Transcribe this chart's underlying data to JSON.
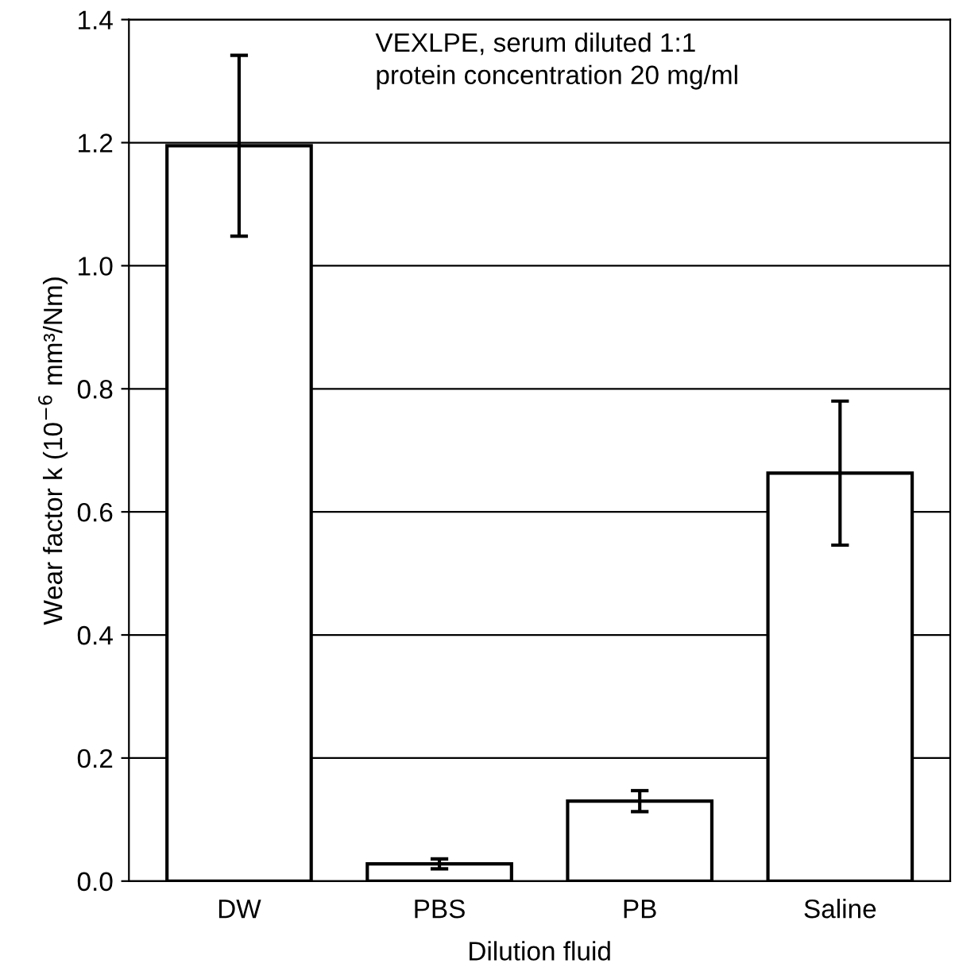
{
  "chart_data": {
    "type": "bar",
    "xlabel": "Dilution fluid",
    "ylabel": "Wear factor k (10$^{−6}$ mm³/Nm)",
    "categories": [
      "DW",
      "PBS",
      "PB",
      "Saline"
    ],
    "values": [
      1.195,
      0.028,
      0.13,
      0.663
    ],
    "errors": [
      0.147,
      0.008,
      0.017,
      0.117
    ],
    "color": "#ffffff",
    "ylim": [
      0,
      1.4
    ],
    "yticks": [
      {
        "value": 0,
        "label": "0.0"
      },
      {
        "value": 0.2,
        "label": "0.2"
      },
      {
        "value": 0.4,
        "label": "0.4"
      },
      {
        "value": 0.6,
        "label": "0.6"
      },
      {
        "value": 0.8,
        "label": "0.8"
      },
      {
        "value": 1.0,
        "label": "1.0"
      },
      {
        "value": 1.2,
        "label": "1.2"
      },
      {
        "value": 1.4,
        "label": "1.4"
      }
    ],
    "grid": "y",
    "annotations": [
      "VEXLPE, serum diluted 1:1\nprotein concentration 20 mg/ml"
    ]
  }
}
